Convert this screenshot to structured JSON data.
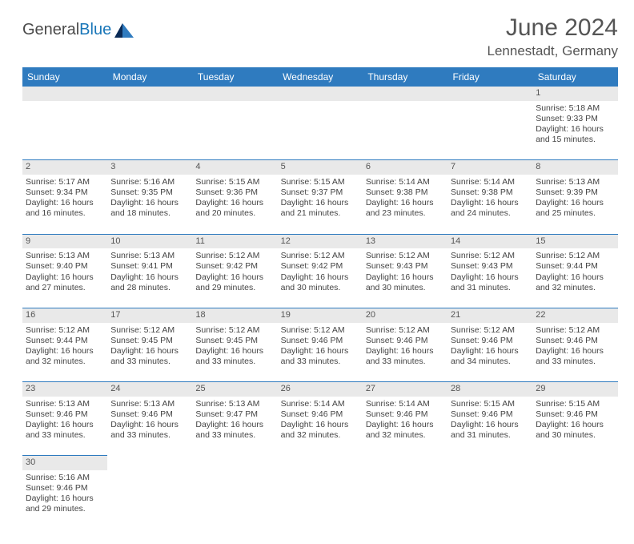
{
  "brand": {
    "general": "General",
    "blue": "Blue"
  },
  "title": "June 2024",
  "location": "Lennestadt, Germany",
  "day_headers": [
    "Sunday",
    "Monday",
    "Tuesday",
    "Wednesday",
    "Thursday",
    "Friday",
    "Saturday"
  ],
  "colors": {
    "header_bg": "#2f7bbf",
    "header_fg": "#ffffff",
    "daynum_bg": "#e9e9e9",
    "border": "#2f7bbf",
    "text": "#444444",
    "title": "#555555"
  },
  "weeks": [
    [
      null,
      null,
      null,
      null,
      null,
      null,
      {
        "n": "1",
        "sunrise": "Sunrise: 5:18 AM",
        "sunset": "Sunset: 9:33 PM",
        "day1": "Daylight: 16 hours",
        "day2": "and 15 minutes."
      }
    ],
    [
      {
        "n": "2",
        "sunrise": "Sunrise: 5:17 AM",
        "sunset": "Sunset: 9:34 PM",
        "day1": "Daylight: 16 hours",
        "day2": "and 16 minutes."
      },
      {
        "n": "3",
        "sunrise": "Sunrise: 5:16 AM",
        "sunset": "Sunset: 9:35 PM",
        "day1": "Daylight: 16 hours",
        "day2": "and 18 minutes."
      },
      {
        "n": "4",
        "sunrise": "Sunrise: 5:15 AM",
        "sunset": "Sunset: 9:36 PM",
        "day1": "Daylight: 16 hours",
        "day2": "and 20 minutes."
      },
      {
        "n": "5",
        "sunrise": "Sunrise: 5:15 AM",
        "sunset": "Sunset: 9:37 PM",
        "day1": "Daylight: 16 hours",
        "day2": "and 21 minutes."
      },
      {
        "n": "6",
        "sunrise": "Sunrise: 5:14 AM",
        "sunset": "Sunset: 9:38 PM",
        "day1": "Daylight: 16 hours",
        "day2": "and 23 minutes."
      },
      {
        "n": "7",
        "sunrise": "Sunrise: 5:14 AM",
        "sunset": "Sunset: 9:38 PM",
        "day1": "Daylight: 16 hours",
        "day2": "and 24 minutes."
      },
      {
        "n": "8",
        "sunrise": "Sunrise: 5:13 AM",
        "sunset": "Sunset: 9:39 PM",
        "day1": "Daylight: 16 hours",
        "day2": "and 25 minutes."
      }
    ],
    [
      {
        "n": "9",
        "sunrise": "Sunrise: 5:13 AM",
        "sunset": "Sunset: 9:40 PM",
        "day1": "Daylight: 16 hours",
        "day2": "and 27 minutes."
      },
      {
        "n": "10",
        "sunrise": "Sunrise: 5:13 AM",
        "sunset": "Sunset: 9:41 PM",
        "day1": "Daylight: 16 hours",
        "day2": "and 28 minutes."
      },
      {
        "n": "11",
        "sunrise": "Sunrise: 5:12 AM",
        "sunset": "Sunset: 9:42 PM",
        "day1": "Daylight: 16 hours",
        "day2": "and 29 minutes."
      },
      {
        "n": "12",
        "sunrise": "Sunrise: 5:12 AM",
        "sunset": "Sunset: 9:42 PM",
        "day1": "Daylight: 16 hours",
        "day2": "and 30 minutes."
      },
      {
        "n": "13",
        "sunrise": "Sunrise: 5:12 AM",
        "sunset": "Sunset: 9:43 PM",
        "day1": "Daylight: 16 hours",
        "day2": "and 30 minutes."
      },
      {
        "n": "14",
        "sunrise": "Sunrise: 5:12 AM",
        "sunset": "Sunset: 9:43 PM",
        "day1": "Daylight: 16 hours",
        "day2": "and 31 minutes."
      },
      {
        "n": "15",
        "sunrise": "Sunrise: 5:12 AM",
        "sunset": "Sunset: 9:44 PM",
        "day1": "Daylight: 16 hours",
        "day2": "and 32 minutes."
      }
    ],
    [
      {
        "n": "16",
        "sunrise": "Sunrise: 5:12 AM",
        "sunset": "Sunset: 9:44 PM",
        "day1": "Daylight: 16 hours",
        "day2": "and 32 minutes."
      },
      {
        "n": "17",
        "sunrise": "Sunrise: 5:12 AM",
        "sunset": "Sunset: 9:45 PM",
        "day1": "Daylight: 16 hours",
        "day2": "and 33 minutes."
      },
      {
        "n": "18",
        "sunrise": "Sunrise: 5:12 AM",
        "sunset": "Sunset: 9:45 PM",
        "day1": "Daylight: 16 hours",
        "day2": "and 33 minutes."
      },
      {
        "n": "19",
        "sunrise": "Sunrise: 5:12 AM",
        "sunset": "Sunset: 9:46 PM",
        "day1": "Daylight: 16 hours",
        "day2": "and 33 minutes."
      },
      {
        "n": "20",
        "sunrise": "Sunrise: 5:12 AM",
        "sunset": "Sunset: 9:46 PM",
        "day1": "Daylight: 16 hours",
        "day2": "and 33 minutes."
      },
      {
        "n": "21",
        "sunrise": "Sunrise: 5:12 AM",
        "sunset": "Sunset: 9:46 PM",
        "day1": "Daylight: 16 hours",
        "day2": "and 34 minutes."
      },
      {
        "n": "22",
        "sunrise": "Sunrise: 5:12 AM",
        "sunset": "Sunset: 9:46 PM",
        "day1": "Daylight: 16 hours",
        "day2": "and 33 minutes."
      }
    ],
    [
      {
        "n": "23",
        "sunrise": "Sunrise: 5:13 AM",
        "sunset": "Sunset: 9:46 PM",
        "day1": "Daylight: 16 hours",
        "day2": "and 33 minutes."
      },
      {
        "n": "24",
        "sunrise": "Sunrise: 5:13 AM",
        "sunset": "Sunset: 9:46 PM",
        "day1": "Daylight: 16 hours",
        "day2": "and 33 minutes."
      },
      {
        "n": "25",
        "sunrise": "Sunrise: 5:13 AM",
        "sunset": "Sunset: 9:47 PM",
        "day1": "Daylight: 16 hours",
        "day2": "and 33 minutes."
      },
      {
        "n": "26",
        "sunrise": "Sunrise: 5:14 AM",
        "sunset": "Sunset: 9:46 PM",
        "day1": "Daylight: 16 hours",
        "day2": "and 32 minutes."
      },
      {
        "n": "27",
        "sunrise": "Sunrise: 5:14 AM",
        "sunset": "Sunset: 9:46 PM",
        "day1": "Daylight: 16 hours",
        "day2": "and 32 minutes."
      },
      {
        "n": "28",
        "sunrise": "Sunrise: 5:15 AM",
        "sunset": "Sunset: 9:46 PM",
        "day1": "Daylight: 16 hours",
        "day2": "and 31 minutes."
      },
      {
        "n": "29",
        "sunrise": "Sunrise: 5:15 AM",
        "sunset": "Sunset: 9:46 PM",
        "day1": "Daylight: 16 hours",
        "day2": "and 30 minutes."
      }
    ],
    [
      {
        "n": "30",
        "sunrise": "Sunrise: 5:16 AM",
        "sunset": "Sunset: 9:46 PM",
        "day1": "Daylight: 16 hours",
        "day2": "and 29 minutes."
      },
      null,
      null,
      null,
      null,
      null,
      null
    ]
  ]
}
